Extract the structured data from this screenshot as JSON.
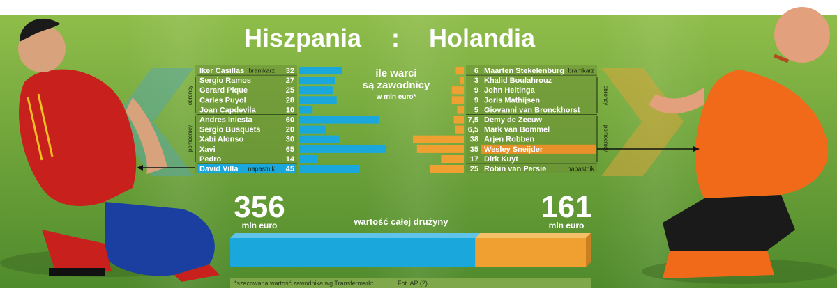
{
  "title": {
    "left": "Hiszpania",
    "sep": ":",
    "right": "Holandia"
  },
  "center_label": {
    "line1": "ile warci",
    "line2": "są zawodnicy",
    "line3": "w mln euro*"
  },
  "colors": {
    "spain": "#1aa8dc",
    "netherlands": "#f0a030",
    "highlight_spain": "#1aa8dc",
    "highlight_nl": "#e8902a"
  },
  "groups": {
    "left": {
      "defenders": "obrońcy",
      "midfielders": "pomocnicy"
    },
    "right": {
      "defenders": "obrońcy",
      "midfielders": "pomocnicy"
    }
  },
  "chart_data": {
    "type": "bar",
    "unit": "mln euro",
    "series": [
      {
        "name": "Hiszpania",
        "players": [
          {
            "name": "Iker Casillas",
            "role": "bramkarz",
            "value": 32
          },
          {
            "name": "Sergio Ramos",
            "role": "",
            "value": 27
          },
          {
            "name": "Gerard Pique",
            "role": "",
            "value": 25
          },
          {
            "name": "Carles Puyol",
            "role": "",
            "value": 28
          },
          {
            "name": "Joan Capdevila",
            "role": "",
            "value": 10
          },
          {
            "name": "Andres Iniesta",
            "role": "",
            "value": 60
          },
          {
            "name": "Sergio Busquets",
            "role": "",
            "value": 20
          },
          {
            "name": "Xabi Alonso",
            "role": "",
            "value": 30
          },
          {
            "name": "Xavi",
            "role": "",
            "value": 65
          },
          {
            "name": "Pedro",
            "role": "",
            "value": 14
          },
          {
            "name": "David Villa",
            "role": "napastnik",
            "value": 45,
            "highlight": true
          }
        ]
      },
      {
        "name": "Holandia",
        "players": [
          {
            "name": "Maarten Stekelenburg",
            "role": "bramkarz",
            "value": 6,
            "display": "6"
          },
          {
            "name": "Khalid Boulahrouz",
            "role": "",
            "value": 3,
            "display": "3"
          },
          {
            "name": "John Heitinga",
            "role": "",
            "value": 9,
            "display": "9"
          },
          {
            "name": "Joris Mathijsen",
            "role": "",
            "value": 9,
            "display": "9"
          },
          {
            "name": "Giovanni van Bronckhorst",
            "role": "",
            "value": 5,
            "display": "5"
          },
          {
            "name": "Demy de Zeeuw",
            "role": "",
            "value": 7.5,
            "display": "7,5"
          },
          {
            "name": "Mark van Bommel",
            "role": "",
            "value": 6.5,
            "display": "6,5"
          },
          {
            "name": "Arjen Robben",
            "role": "",
            "value": 38,
            "display": "38"
          },
          {
            "name": "Wesley Sneijder",
            "role": "",
            "value": 35,
            "display": "35",
            "highlight": true
          },
          {
            "name": "Dirk Kuyt",
            "role": "",
            "value": 17,
            "display": "17"
          },
          {
            "name": "Robin van Persie",
            "role": "napastnik",
            "value": 25,
            "display": "25"
          }
        ]
      }
    ],
    "totals": {
      "label": "wartość całej drużyny",
      "unit": "mln euro",
      "spain": 356,
      "netherlands": 161
    }
  },
  "footnote": "*szacowana wartość zawodnika wg Transfermarkt",
  "credit": "Fot. AP (2)"
}
